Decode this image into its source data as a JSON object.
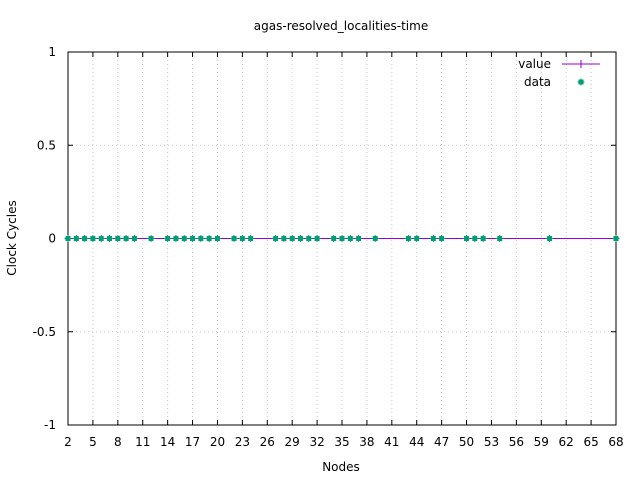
{
  "chart_data": {
    "type": "line",
    "title": "agas-resolved_localities-time",
    "xlabel": "Nodes",
    "ylabel": "Clock Cycles",
    "xlim": [
      2,
      68
    ],
    "ylim": [
      -1,
      1
    ],
    "x_ticks": [
      "2",
      "5",
      "8",
      "11",
      "14",
      "17",
      "20",
      "23",
      "26",
      "29",
      "32",
      "35",
      "38",
      "41",
      "44",
      "47",
      "50",
      "53",
      "56",
      "59",
      "62",
      "65",
      "68"
    ],
    "y_ticks": [
      "1",
      "0.5",
      "0",
      "-0.5",
      "-1"
    ],
    "grid": true,
    "legend_position": "top-right",
    "series": [
      {
        "name": "value",
        "style": "line",
        "color": "#9400d3",
        "x": [
          2,
          68
        ],
        "y": [
          0,
          0
        ]
      },
      {
        "name": "data",
        "style": "points",
        "color": "#009e73",
        "x": [
          2,
          3,
          4,
          5,
          6,
          7,
          8,
          9,
          10,
          12,
          14,
          15,
          16,
          17,
          18,
          19,
          20,
          22,
          23,
          24,
          27,
          28,
          29,
          30,
          31,
          32,
          34,
          35,
          36,
          37,
          39,
          43,
          44,
          46,
          47,
          50,
          51,
          52,
          54,
          60,
          68
        ],
        "y": [
          0,
          0,
          0,
          0,
          0,
          0,
          0,
          0,
          0,
          0,
          0,
          0,
          0,
          0,
          0,
          0,
          0,
          0,
          0,
          0,
          0,
          0,
          0,
          0,
          0,
          0,
          0,
          0,
          0,
          0,
          0,
          0,
          0,
          0,
          0,
          0,
          0,
          0,
          0,
          0,
          0
        ]
      }
    ]
  }
}
